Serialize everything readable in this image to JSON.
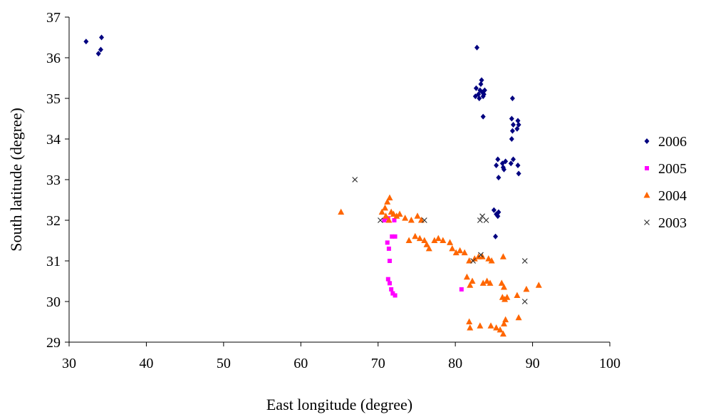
{
  "chart_data": {
    "type": "scatter",
    "title": "",
    "xlabel": "East longitude (degree)",
    "ylabel": "South latitude (degree)",
    "xlim": [
      30,
      100
    ],
    "ylim": [
      29,
      37
    ],
    "xticks": [
      30,
      40,
      50,
      60,
      70,
      80,
      90,
      100
    ],
    "yticks": [
      29,
      30,
      31,
      32,
      33,
      34,
      35,
      36,
      37
    ],
    "grid": false,
    "legend_position": "right",
    "series": [
      {
        "name": "2006",
        "marker": "diamond",
        "color": "#000080",
        "points": [
          [
            32.2,
            36.4
          ],
          [
            33.8,
            36.1
          ],
          [
            34.1,
            36.2
          ],
          [
            34.2,
            36.5
          ],
          [
            82.8,
            36.25
          ],
          [
            82.7,
            35.25
          ],
          [
            82.6,
            35.05
          ],
          [
            83.0,
            35.1
          ],
          [
            83.2,
            35.2
          ],
          [
            83.3,
            35.35
          ],
          [
            83.4,
            35.45
          ],
          [
            83.5,
            35.15
          ],
          [
            83.6,
            35.05
          ],
          [
            83.7,
            35.1
          ],
          [
            83.8,
            35.2
          ],
          [
            83.1,
            35.0
          ],
          [
            83.6,
            34.55
          ],
          [
            87.4,
            35.0
          ],
          [
            87.3,
            34.5
          ],
          [
            87.5,
            34.35
          ],
          [
            87.4,
            34.2
          ],
          [
            87.3,
            34.0
          ],
          [
            88.1,
            34.45
          ],
          [
            88.2,
            34.35
          ],
          [
            88.0,
            34.25
          ],
          [
            85.3,
            33.35
          ],
          [
            85.5,
            33.5
          ],
          [
            85.6,
            33.05
          ],
          [
            86.1,
            33.4
          ],
          [
            86.2,
            33.3
          ],
          [
            86.5,
            33.45
          ],
          [
            86.3,
            33.25
          ],
          [
            87.2,
            33.4
          ],
          [
            87.5,
            33.5
          ],
          [
            88.1,
            33.35
          ],
          [
            88.2,
            33.15
          ],
          [
            85.0,
            32.25
          ],
          [
            85.3,
            32.15
          ],
          [
            85.5,
            32.1
          ],
          [
            85.6,
            32.2
          ],
          [
            85.2,
            31.6
          ]
        ]
      },
      {
        "name": "2005",
        "marker": "square",
        "color": "#ff00ff",
        "points": [
          [
            70.8,
            32.0
          ],
          [
            71.3,
            32.05
          ],
          [
            72.1,
            32.0
          ],
          [
            71.8,
            31.6
          ],
          [
            72.2,
            31.6
          ],
          [
            71.2,
            31.45
          ],
          [
            71.4,
            31.3
          ],
          [
            71.5,
            31.0
          ],
          [
            71.3,
            30.55
          ],
          [
            71.5,
            30.45
          ],
          [
            71.7,
            30.3
          ],
          [
            71.9,
            30.2
          ],
          [
            72.2,
            30.15
          ],
          [
            80.8,
            30.3
          ]
        ]
      },
      {
        "name": "2004",
        "marker": "triangle",
        "color": "#ff6600",
        "points": [
          [
            65.2,
            32.2
          ],
          [
            70.5,
            32.2
          ],
          [
            70.9,
            32.3
          ],
          [
            71.2,
            32.45
          ],
          [
            71.5,
            32.55
          ],
          [
            71.0,
            32.1
          ],
          [
            71.4,
            32.0
          ],
          [
            71.7,
            32.2
          ],
          [
            72.0,
            32.15
          ],
          [
            72.4,
            32.1
          ],
          [
            72.8,
            32.15
          ],
          [
            73.5,
            32.05
          ],
          [
            74.3,
            32.0
          ],
          [
            75.1,
            32.1
          ],
          [
            75.6,
            32.0
          ],
          [
            74.0,
            31.5
          ],
          [
            74.8,
            31.6
          ],
          [
            75.4,
            31.55
          ],
          [
            76.0,
            31.5
          ],
          [
            76.3,
            31.4
          ],
          [
            76.6,
            31.3
          ],
          [
            77.3,
            31.5
          ],
          [
            77.8,
            31.55
          ],
          [
            78.4,
            31.5
          ],
          [
            79.3,
            31.45
          ],
          [
            79.6,
            31.3
          ],
          [
            80.1,
            31.2
          ],
          [
            80.6,
            31.25
          ],
          [
            81.2,
            31.2
          ],
          [
            81.8,
            31.0
          ],
          [
            82.5,
            31.05
          ],
          [
            83.0,
            31.1
          ],
          [
            83.5,
            31.1
          ],
          [
            84.3,
            31.05
          ],
          [
            84.7,
            31.0
          ],
          [
            86.2,
            31.1
          ],
          [
            81.5,
            30.6
          ],
          [
            81.9,
            30.4
          ],
          [
            82.2,
            30.5
          ],
          [
            83.6,
            30.45
          ],
          [
            84.1,
            30.5
          ],
          [
            84.5,
            30.45
          ],
          [
            86.0,
            30.45
          ],
          [
            86.3,
            30.35
          ],
          [
            86.1,
            30.1
          ],
          [
            86.4,
            30.05
          ],
          [
            86.7,
            30.1
          ],
          [
            88.0,
            30.15
          ],
          [
            89.2,
            30.3
          ],
          [
            90.8,
            30.4
          ],
          [
            81.8,
            29.5
          ],
          [
            81.9,
            29.35
          ],
          [
            83.2,
            29.4
          ],
          [
            84.6,
            29.4
          ],
          [
            85.3,
            29.35
          ],
          [
            85.8,
            29.3
          ],
          [
            86.2,
            29.2
          ],
          [
            86.5,
            29.55
          ],
          [
            86.3,
            29.45
          ],
          [
            88.2,
            29.6
          ]
        ]
      },
      {
        "name": "2003",
        "marker": "x",
        "color": "#333333",
        "points": [
          [
            67.0,
            33.0
          ],
          [
            70.3,
            32.0
          ],
          [
            76.0,
            32.0
          ],
          [
            83.2,
            32.0
          ],
          [
            83.5,
            32.1
          ],
          [
            84.0,
            32.0
          ],
          [
            82.3,
            31.0
          ],
          [
            83.3,
            31.15
          ],
          [
            89.0,
            31.0
          ],
          [
            89.0,
            30.0
          ]
        ]
      }
    ]
  }
}
